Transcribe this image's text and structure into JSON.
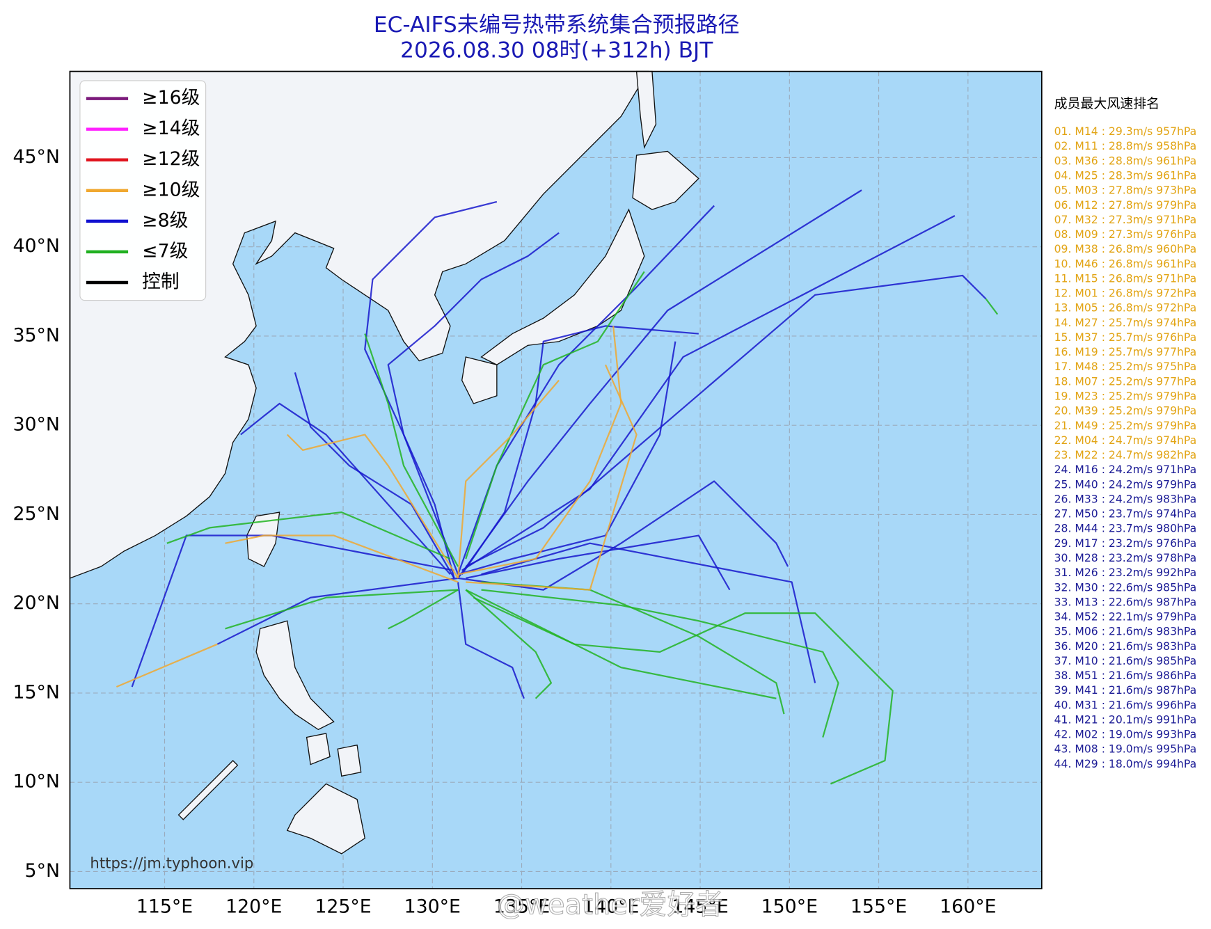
{
  "header": {
    "title": "EC-AIFS未编号热带系统集合预报路径",
    "subtitle": "2026.08.30 08时(+312h) BJT",
    "color": "#1a1ab4"
  },
  "legend": {
    "entries": [
      {
        "label": "≥16级",
        "color": "#7b1a7b"
      },
      {
        "label": "≥14级",
        "color": "#ff22ff"
      },
      {
        "label": "≥12级",
        "color": "#e0141e"
      },
      {
        "label": "≥10级",
        "color": "#f0a830"
      },
      {
        "label": "≥8级",
        "color": "#1010d0"
      },
      {
        "label": "≤7级",
        "color": "#20b020"
      },
      {
        "label": "控制",
        "color": "#000000"
      }
    ]
  },
  "map": {
    "lon_ticks": [
      {
        "value": 115,
        "label": "115°E"
      },
      {
        "value": 120,
        "label": "120°E"
      },
      {
        "value": 125,
        "label": "125°E"
      },
      {
        "value": 130,
        "label": "130°E"
      },
      {
        "value": 135,
        "label": "135°E"
      },
      {
        "value": 140,
        "label": "140°E"
      },
      {
        "value": 145,
        "label": "145°E"
      },
      {
        "value": 150,
        "label": "150°E"
      },
      {
        "value": 155,
        "label": "155°E"
      },
      {
        "value": 160,
        "label": "160°E"
      }
    ],
    "lat_ticks": [
      {
        "value": 45,
        "label": "45°N"
      },
      {
        "value": 40,
        "label": "40°N"
      },
      {
        "value": 35,
        "label": "35°N"
      },
      {
        "value": 30,
        "label": "30°N"
      },
      {
        "value": 25,
        "label": "25°N"
      },
      {
        "value": 20,
        "label": "20°N"
      },
      {
        "value": 15,
        "label": "15°N"
      },
      {
        "value": 10,
        "label": "10°N"
      },
      {
        "value": 5,
        "label": "5°N"
      }
    ]
  },
  "ranking": {
    "title": "成员最大风速排名",
    "groups": [
      {
        "color": "#e2a414",
        "entries": [
          "01. M14 : 29.3m/s 957hPa",
          "02. M11 : 28.8m/s 958hPa",
          "03. M36 : 28.8m/s 961hPa",
          "04. M25 : 28.3m/s 961hPa",
          "05. M03 : 27.8m/s 973hPa",
          "06. M12 : 27.8m/s 979hPa",
          "07. M32 : 27.3m/s 971hPa",
          "08. M09 : 27.3m/s 976hPa",
          "09. M38 : 26.8m/s 960hPa",
          "10. M46 : 26.8m/s 961hPa",
          "11. M15 : 26.8m/s 971hPa",
          "12. M01 : 26.8m/s 972hPa",
          "13. M05 : 26.8m/s 972hPa",
          "14. M27 : 25.7m/s 974hPa",
          "15. M37 : 25.7m/s 976hPa",
          "16. M19 : 25.7m/s 977hPa",
          "17. M48 : 25.2m/s 975hPa",
          "18. M07 : 25.2m/s 977hPa",
          "19. M23 : 25.2m/s 979hPa",
          "20. M39 : 25.2m/s 979hPa",
          "21. M49 : 25.2m/s 979hPa",
          "22. M04 : 24.7m/s 974hPa",
          "23. M22 : 24.7m/s 982hPa"
        ]
      },
      {
        "color": "#1c1c96",
        "entries": [
          "24. M16 : 24.2m/s 971hPa",
          "25. M40 : 24.2m/s 979hPa",
          "26. M33 : 24.2m/s 983hPa",
          "27. M50 : 23.7m/s 974hPa",
          "28. M44 : 23.7m/s 980hPa",
          "29. M17 : 23.2m/s 976hPa",
          "30. M28 : 23.2m/s 978hPa",
          "31. M26 : 23.2m/s 992hPa",
          "32. M30 : 22.6m/s 985hPa",
          "33. M13 : 22.6m/s 987hPa",
          "34. M52 : 22.1m/s 979hPa",
          "35. M06 : 21.6m/s 983hPa",
          "36. M20 : 21.6m/s 983hPa",
          "37. M10 : 21.6m/s 985hPa",
          "38. M51 : 21.6m/s 986hPa",
          "39. M41 : 21.6m/s 987hPa",
          "40. M31 : 21.6m/s 996hPa",
          "41. M21 : 20.1m/s 991hPa",
          "42. M02 : 19.0m/s 993hPa",
          "43. M08 : 19.0m/s 995hPa",
          "44. M29 : 18.0m/s 994hPa"
        ]
      }
    ]
  },
  "watermarks": [
    "https://jm.typhoon.vip",
    "@weather爱好者"
  ]
}
